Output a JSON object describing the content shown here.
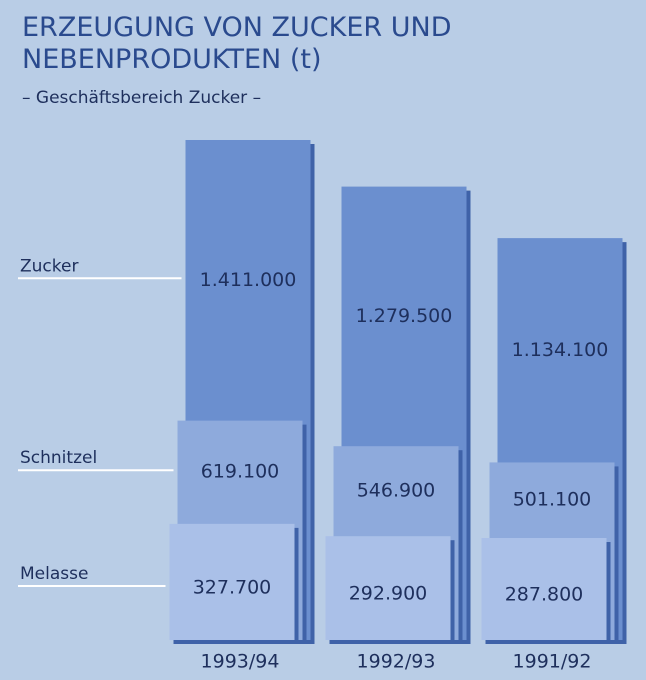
{
  "chart_data": {
    "type": "layered-bar",
    "title": "ERZEUGUNG VON ZUCKER UND NEBENPRODUKTEN (t)",
    "subtitle": "– Geschäftsbereich Zucker –",
    "categories": [
      "1993/94",
      "1992/93",
      "1991/92"
    ],
    "series": [
      {
        "name": "Zucker",
        "color": "#6b8fcf",
        "values": [
          1411000,
          1279500,
          1134100
        ],
        "value_labels": [
          "1.411.000",
          "1.279.500",
          "1.134.100"
        ]
      },
      {
        "name": "Schnitzel",
        "color": "#8eaadc",
        "values": [
          619100,
          546900,
          501100
        ],
        "value_labels": [
          "619.100",
          "546.900",
          "501.100"
        ]
      },
      {
        "name": "Melasse",
        "color": "#aac0e8",
        "values": [
          327700,
          292900,
          287800
        ],
        "value_labels": [
          "327.700",
          "292.900",
          "287.800"
        ]
      }
    ],
    "ylim": [
      0,
      1411000
    ]
  }
}
